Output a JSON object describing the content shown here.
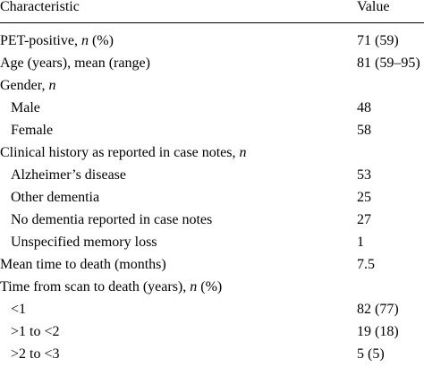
{
  "table": {
    "header": {
      "characteristic": "Characteristic",
      "value": "Value"
    },
    "rows": [
      {
        "label": "PET-positive, ",
        "italic": "n",
        "suffix": " (%)",
        "value": "71 (59)",
        "indent": false
      },
      {
        "label": "Age (years), mean (range)",
        "italic": "",
        "suffix": "",
        "value": "81 (59–95)",
        "indent": false
      },
      {
        "label": "Gender, ",
        "italic": "n",
        "suffix": "",
        "value": "",
        "indent": false
      },
      {
        "label": "Male",
        "italic": "",
        "suffix": "",
        "value": "48",
        "indent": true
      },
      {
        "label": "Female",
        "italic": "",
        "suffix": "",
        "value": "58",
        "indent": true
      },
      {
        "label": "Clinical history as reported in case notes, ",
        "italic": "n",
        "suffix": "",
        "value": "",
        "indent": false
      },
      {
        "label": "Alzheimer’s disease",
        "italic": "",
        "suffix": "",
        "value": "53",
        "indent": true
      },
      {
        "label": "Other dementia",
        "italic": "",
        "suffix": "",
        "value": "25",
        "indent": true
      },
      {
        "label": "No dementia reported in case notes",
        "italic": "",
        "suffix": "",
        "value": "27",
        "indent": true
      },
      {
        "label": "Unspecified memory loss",
        "italic": "",
        "suffix": "",
        "value": "1",
        "indent": true
      },
      {
        "label": "Mean time to death (months)",
        "italic": "",
        "suffix": "",
        "value": "7.5",
        "indent": false
      },
      {
        "label": "Time from scan to death (years), ",
        "italic": "n",
        "suffix": " (%)",
        "value": "",
        "indent": false
      },
      {
        "label": "<1",
        "italic": "",
        "suffix": "",
        "value": "82 (77)",
        "indent": true
      },
      {
        "label": ">1 to <2",
        "italic": "",
        "suffix": "",
        "value": "19 (18)",
        "indent": true
      },
      {
        "label": ">2 to <3",
        "italic": "",
        "suffix": "",
        "value": "5 (5)",
        "indent": true
      }
    ]
  }
}
